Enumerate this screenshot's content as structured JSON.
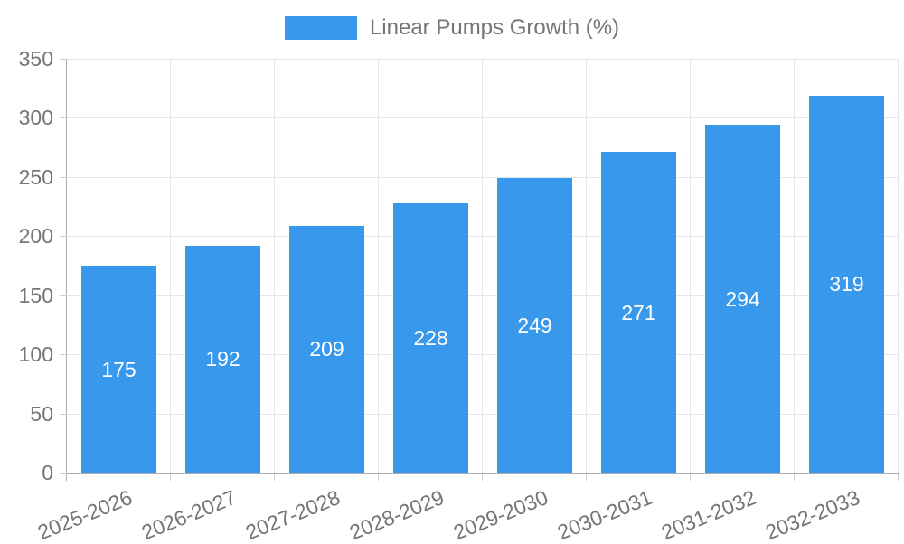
{
  "chart_data": {
    "type": "bar",
    "series_name": "Linear Pumps Growth (%)",
    "categories": [
      "2025-2026",
      "2026-2027",
      "2027-2028",
      "2028-2029",
      "2029-2030",
      "2030-2031",
      "2031-2032",
      "2032-2033"
    ],
    "values": [
      175,
      192,
      209,
      228,
      249,
      271,
      294,
      319
    ],
    "yticks": [
      0,
      50,
      100,
      150,
      200,
      250,
      300,
      350
    ],
    "ylim": [
      0,
      350
    ],
    "grid": true,
    "legend_position": "top",
    "xlabel_rotation_deg": -22,
    "colors": {
      "bar": "#3898ec",
      "value_label": "#ffffff",
      "axis_text": "#757575",
      "gridline": "#e6e6e6",
      "axis_line": "#adadad",
      "background": "#ffffff"
    }
  }
}
